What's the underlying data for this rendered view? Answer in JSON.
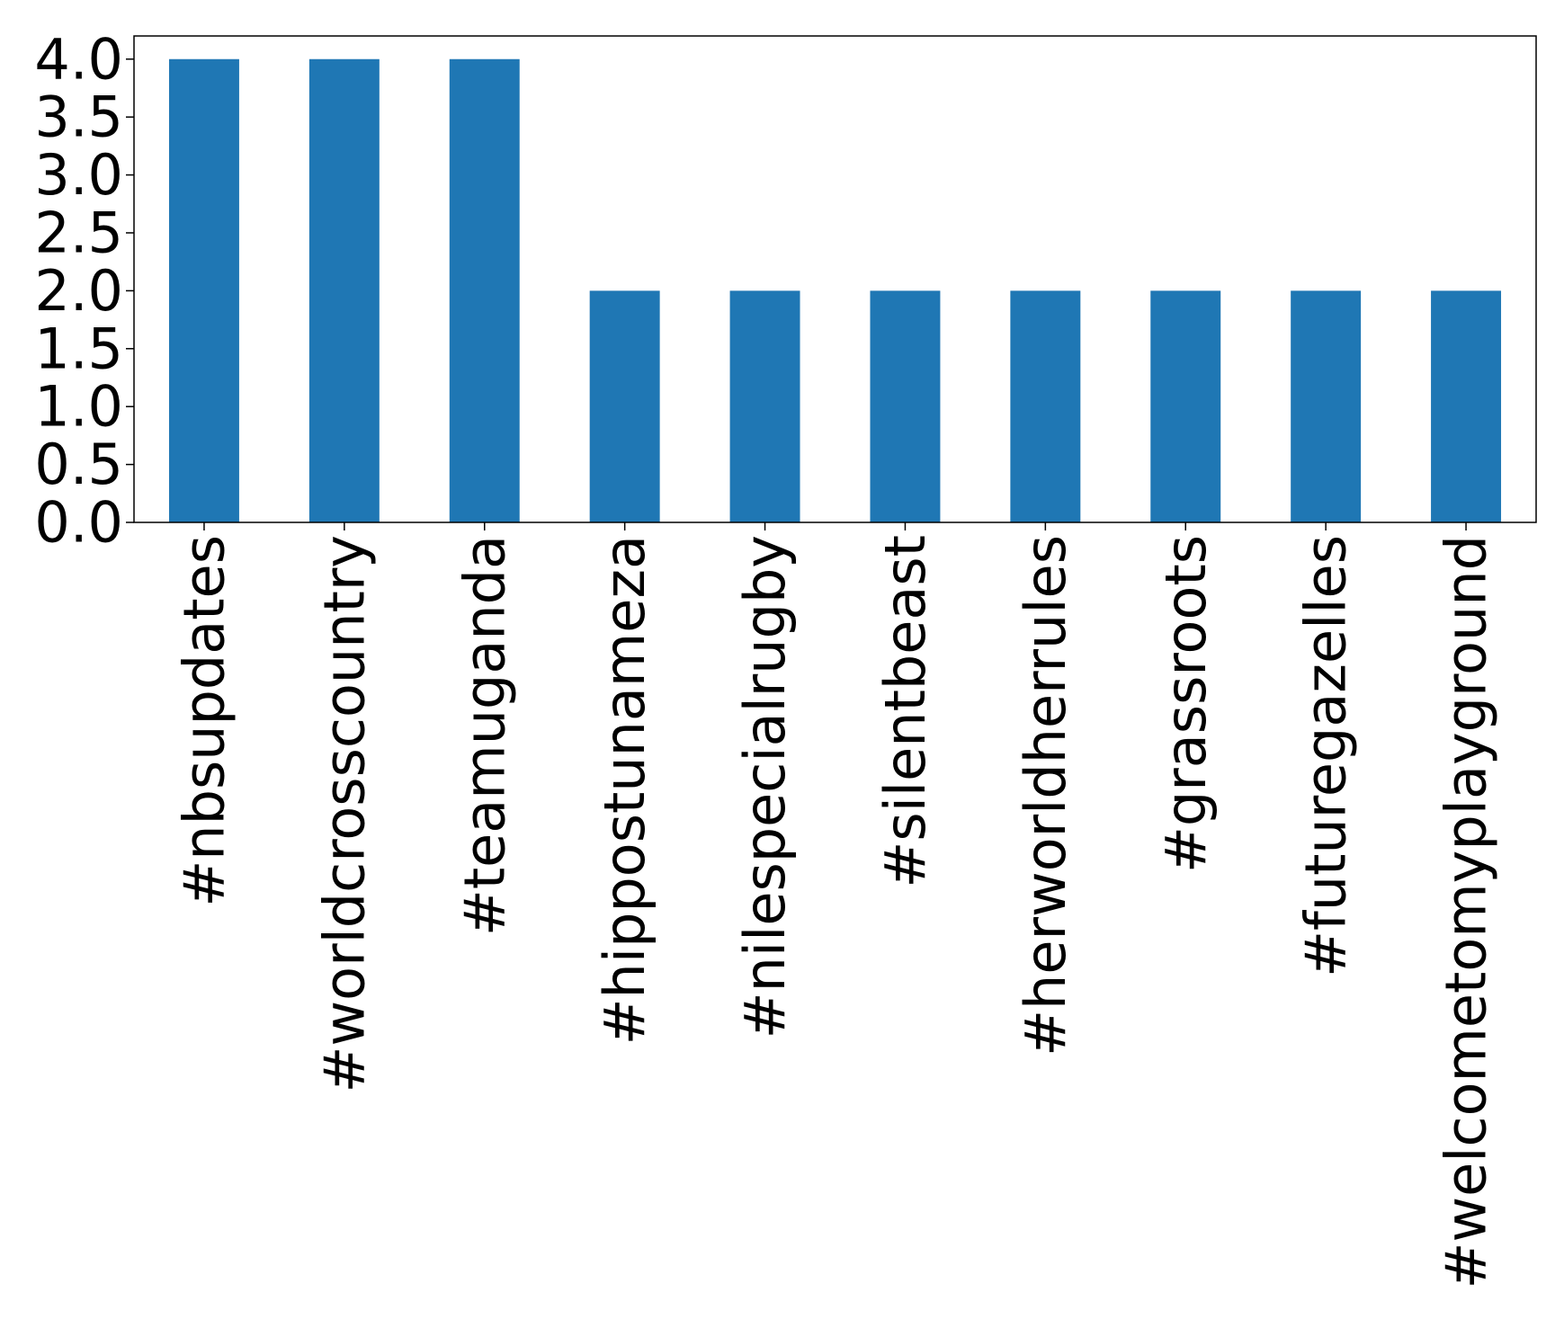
{
  "chart_data": {
    "type": "bar",
    "categories": [
      "#nbsupdates",
      "#worldcrosscountry",
      "#teamuganda",
      "#hippostunameza",
      "#nilespecialrugby",
      "#silentbeast",
      "#herworldherrules",
      "#grassroots",
      "#futuregazelles",
      "#welcometomyplayground"
    ],
    "values": [
      4,
      4,
      4,
      2,
      2,
      2,
      2,
      2,
      2,
      2
    ],
    "color": "#1f77b4",
    "ylim": [
      0,
      4.2
    ],
    "yticks": [
      {
        "value": 0,
        "label": "0.0"
      },
      {
        "value": 0.5,
        "label": "0.5"
      },
      {
        "value": 1,
        "label": "1.0"
      },
      {
        "value": 1.5,
        "label": "1.5"
      },
      {
        "value": 2,
        "label": "2.0"
      },
      {
        "value": 2.5,
        "label": "2.5"
      },
      {
        "value": 3,
        "label": "3.0"
      },
      {
        "value": 3.5,
        "label": "3.5"
      },
      {
        "value": 4,
        "label": "4.0"
      }
    ],
    "grid": false
  }
}
